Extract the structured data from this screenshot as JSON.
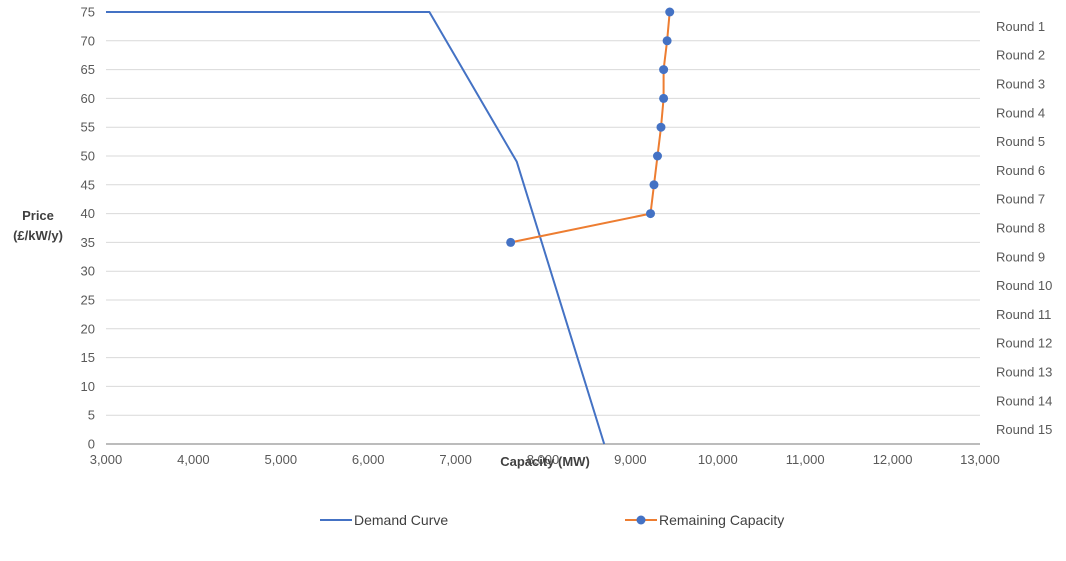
{
  "chart_data": {
    "type": "line",
    "title": "",
    "xlabel": "Capacity (MW)",
    "ylabel_line1": "Price",
    "ylabel_line2": "(£/kW/y)",
    "xlim": [
      3000,
      13000
    ],
    "ylim": [
      0,
      75
    ],
    "x_ticks": [
      "3,000",
      "4,000",
      "5,000",
      "6,000",
      "7,000",
      "8,000",
      "9,000",
      "10,000",
      "11,000",
      "12,000",
      "13,000"
    ],
    "y_ticks": [
      "0",
      "5",
      "10",
      "15",
      "20",
      "25",
      "30",
      "35",
      "40",
      "45",
      "50",
      "55",
      "60",
      "65",
      "70",
      "75"
    ],
    "right_axis_labels": [
      "Round 1",
      "Round 2",
      "Round 3",
      "Round 4",
      "Round 5",
      "Round 6",
      "Round 7",
      "Round 8",
      "Round 9",
      "Round 10",
      "Round 11",
      "Round 12",
      "Round 13",
      "Round 14",
      "Round 15"
    ],
    "grid": true,
    "legend_position": "bottom",
    "series": [
      {
        "name": "Demand Curve",
        "color": "#4472c4",
        "markers": false,
        "points": [
          [
            3000,
            75
          ],
          [
            6700,
            75
          ],
          [
            7700,
            49
          ],
          [
            8700,
            0
          ]
        ]
      },
      {
        "name": "Remaining Capacity",
        "color": "#ed7d31",
        "marker_color": "#4472c4",
        "markers": true,
        "points": [
          [
            9450,
            75
          ],
          [
            9420,
            70
          ],
          [
            9380,
            65
          ],
          [
            9380,
            60
          ],
          [
            9350,
            55
          ],
          [
            9310,
            50
          ],
          [
            9270,
            45
          ],
          [
            9230,
            40
          ],
          [
            7630,
            35
          ]
        ]
      }
    ]
  }
}
